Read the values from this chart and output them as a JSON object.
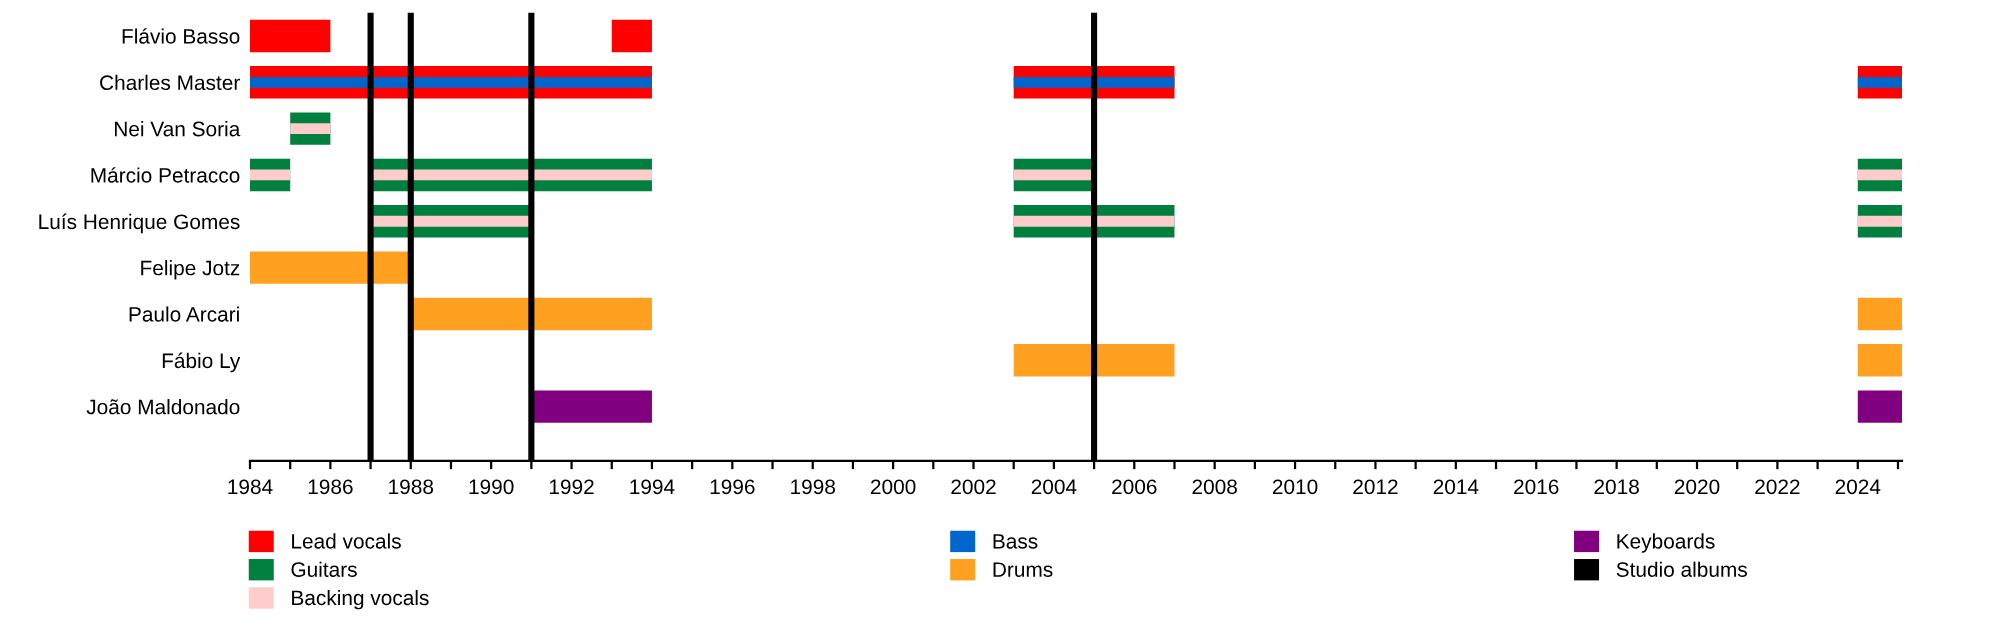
{
  "chart_data": {
    "type": "bar",
    "orientation": "horizontal",
    "categories": [
      "Flávio Basso",
      "Charles Master",
      "Nei Van Soria",
      "Márcio Petracco",
      "Luís Henrique Gomes",
      "Felipe Jotz",
      "Paulo Arcari",
      "Fábio Ly",
      "João Maldonado"
    ],
    "series": [
      {
        "name": "Lead vocals",
        "color": "#ff0000",
        "base": [
          1984,
          1984,
          null,
          null,
          null,
          null,
          null,
          null,
          null
        ],
        "values": [
          2,
          10,
          null,
          null,
          null,
          null,
          null,
          null,
          null
        ]
      },
      {
        "name": "Guitars",
        "color": "#007f3f",
        "base": [
          null,
          null,
          1985,
          1984,
          1987,
          null,
          null,
          null,
          null
        ],
        "values": [
          null,
          null,
          1,
          1,
          4,
          null,
          null,
          null,
          null
        ]
      },
      {
        "name": "Backing vocals",
        "color": "#ffcccc",
        "base": [
          null,
          null,
          1985,
          1984,
          1987,
          null,
          null,
          null,
          null
        ],
        "values": [
          null,
          null,
          1,
          1,
          4,
          null,
          null,
          null,
          null
        ]
      },
      {
        "name": "Bass",
        "color": "#0066cc",
        "base": [
          null,
          1984,
          null,
          null,
          null,
          null,
          null,
          null,
          null
        ],
        "values": [
          null,
          10,
          null,
          null,
          null,
          null,
          null,
          null,
          null
        ]
      },
      {
        "name": "Drums",
        "color": "#ffa020",
        "base": [
          null,
          null,
          null,
          null,
          null,
          1984,
          1988,
          2003,
          null
        ],
        "values": [
          null,
          null,
          null,
          null,
          null,
          4,
          6,
          4,
          null
        ]
      },
      {
        "name": "Keyboards",
        "color": "#800080",
        "base": [
          null,
          null,
          null,
          null,
          null,
          null,
          null,
          null,
          1991
        ],
        "values": [
          null,
          null,
          null,
          null,
          null,
          null,
          null,
          null,
          3
        ]
      },
      {
        "color": "#ff0000",
        "base": [
          1993,
          2003,
          null,
          null,
          null,
          null,
          null,
          null,
          null
        ],
        "values": [
          1,
          4,
          null,
          null,
          null,
          null,
          null,
          null,
          null
        ]
      },
      {
        "color": "#ff0000",
        "base": [
          null,
          2024,
          null,
          null,
          null,
          null,
          null,
          null,
          null
        ],
        "values": [
          null,
          1.1,
          null,
          null,
          null,
          null,
          null,
          null,
          null
        ]
      },
      {
        "color": "#0066cc",
        "base": [
          null,
          2003,
          null,
          null,
          null,
          null,
          null,
          null,
          null
        ],
        "values": [
          null,
          4,
          null,
          null,
          null,
          null,
          null,
          null,
          null
        ]
      },
      {
        "color": "#0066cc",
        "base": [
          null,
          2024,
          null,
          null,
          null,
          null,
          null,
          null,
          null
        ],
        "values": [
          null,
          1.1,
          null,
          null,
          null,
          null,
          null,
          null,
          null
        ]
      },
      {
        "color": "#007f3f",
        "base": [
          null,
          null,
          null,
          1987,
          2003,
          null,
          null,
          null,
          null
        ],
        "values": [
          null,
          null,
          null,
          7,
          4,
          null,
          null,
          null,
          null
        ]
      },
      {
        "color": "#ffcccc",
        "base": [
          null,
          null,
          null,
          1987,
          2003,
          null,
          null,
          null,
          null
        ],
        "values": [
          null,
          null,
          null,
          7,
          4,
          null,
          null,
          null,
          null
        ]
      },
      {
        "color": "#007f3f",
        "base": [
          null,
          null,
          null,
          2003,
          2024,
          null,
          null,
          null,
          null
        ],
        "values": [
          null,
          null,
          null,
          2,
          1.1,
          null,
          null,
          null,
          null
        ]
      },
      {
        "color": "#ffcccc",
        "base": [
          null,
          null,
          null,
          2003,
          2024,
          null,
          null,
          null,
          null
        ],
        "values": [
          null,
          null,
          null,
          2,
          1.1,
          null,
          null,
          null,
          null
        ]
      },
      {
        "color": "#007f3f",
        "base": [
          null,
          null,
          null,
          2024,
          null,
          null,
          null,
          null,
          null
        ],
        "values": [
          null,
          null,
          null,
          1.1,
          null,
          null,
          null,
          null,
          null
        ]
      },
      {
        "color": "#ffcccc",
        "base": [
          null,
          null,
          null,
          2024,
          null,
          null,
          null,
          null,
          null
        ],
        "values": [
          null,
          null,
          null,
          1.1,
          null,
          null,
          null,
          null,
          null
        ]
      },
      {
        "color": "#ffa020",
        "base": [
          null,
          null,
          null,
          null,
          null,
          null,
          2024,
          2024,
          null
        ],
        "values": [
          null,
          null,
          null,
          null,
          null,
          null,
          1.1,
          1.1,
          null
        ]
      },
      {
        "color": "#800080",
        "base": [
          null,
          null,
          null,
          null,
          null,
          null,
          null,
          null,
          2024
        ],
        "values": [
          null,
          null,
          null,
          null,
          null,
          null,
          null,
          null,
          1.1
        ]
      }
    ],
    "ref_lines": [
      {
        "axis": "x",
        "value": 1987,
        "label": "Studio albums",
        "color": "#000000"
      },
      {
        "axis": "x",
        "value": 1988,
        "color": "#000000"
      },
      {
        "axis": "x",
        "value": 1991,
        "color": "#000000"
      },
      {
        "axis": "x",
        "value": 2005,
        "color": "#000000"
      }
    ],
    "xlim": [
      1984,
      2025.1
    ],
    "xticks": [
      1984,
      {
        "value": 1985,
        "label": null
      },
      1986,
      {
        "value": 1987,
        "label": null
      },
      1988,
      {
        "value": 1989,
        "label": null
      },
      1990,
      {
        "value": 1991,
        "label": null
      },
      1992,
      {
        "value": 1993,
        "label": null
      },
      1994,
      {
        "value": 1995,
        "label": null
      },
      1996,
      {
        "value": 1997,
        "label": null
      },
      1998,
      {
        "value": 1999,
        "label": null
      },
      2000,
      {
        "value": 2001,
        "label": null
      },
      2002,
      {
        "value": 2003,
        "label": null
      },
      2004,
      {
        "value": 2005,
        "label": null
      },
      2006,
      {
        "value": 2007,
        "label": null
      },
      2008,
      {
        "value": 2009,
        "label": null
      },
      2010,
      {
        "value": 2011,
        "label": null
      },
      2012,
      {
        "value": 2013,
        "label": null
      },
      2014,
      {
        "value": 2015,
        "label": null
      },
      2016,
      {
        "value": 2017,
        "label": null
      },
      2018,
      {
        "value": 2019,
        "label": null
      },
      2020,
      {
        "value": 2021,
        "label": null
      },
      2022,
      {
        "value": 2023,
        "label": null
      },
      2024,
      {
        "value": 2025,
        "label": null
      }
    ],
    "grid": false,
    "legend": "bottom"
  }
}
